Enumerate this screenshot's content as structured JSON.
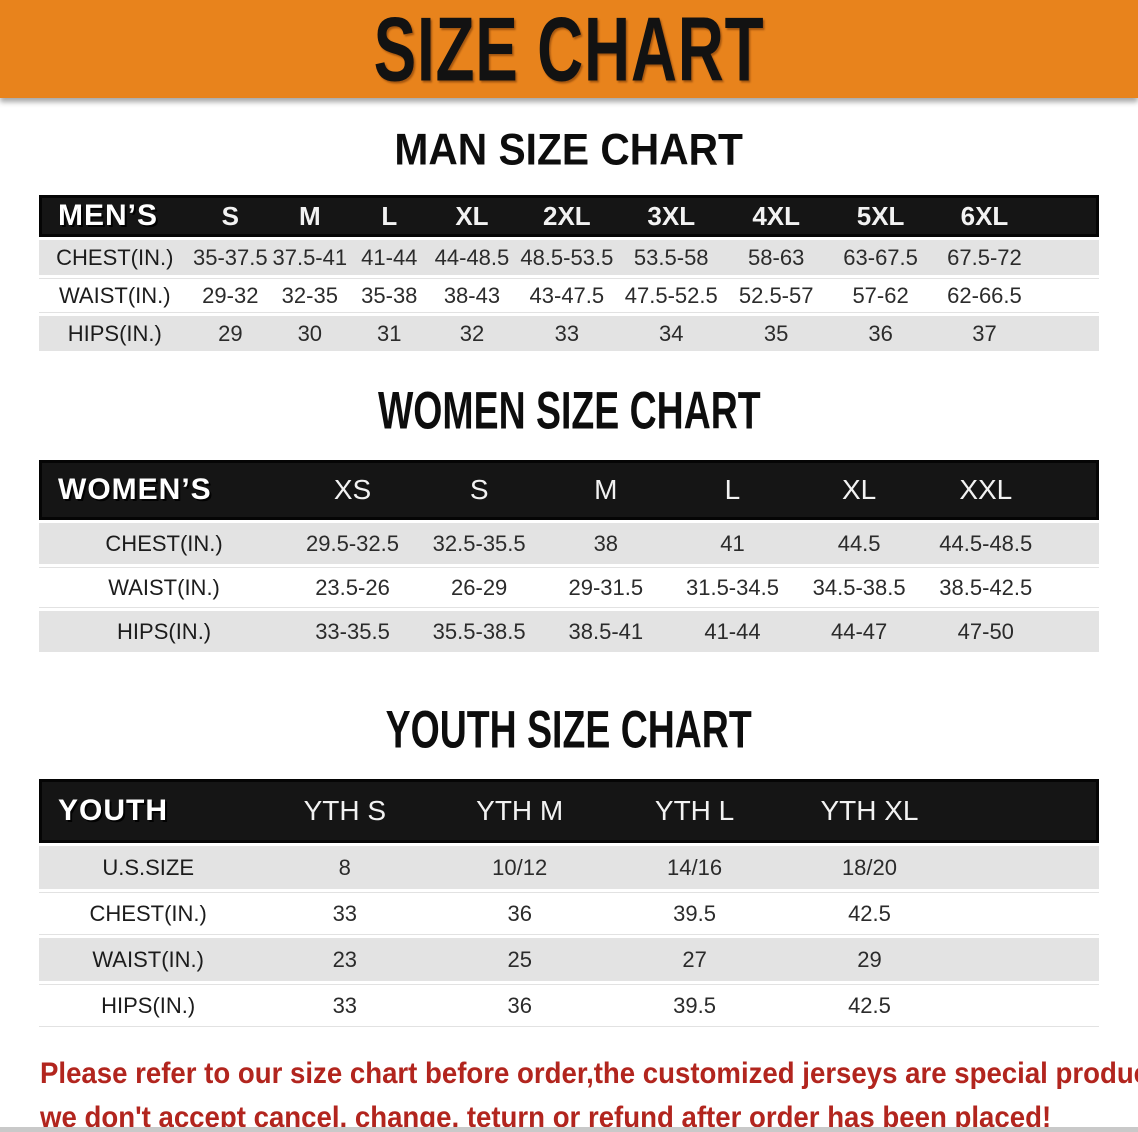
{
  "banner": {
    "title": "SIZE CHART",
    "bg_color": "#e8831c",
    "text_color": "#121212"
  },
  "sections": [
    {
      "heading": "MAN SIZE CHART",
      "label": "MEN’S",
      "columns": [
        "S",
        "M",
        "L",
        "XL",
        "2XL",
        "3XL",
        "4XL",
        "5XL",
        "6XL"
      ],
      "rows": [
        {
          "label": "CHEST(IN.)",
          "values": [
            "35-37.5",
            "37.5-41",
            "41-44",
            "44-48.5",
            "48.5-53.5",
            "53.5-58",
            "58-63",
            "63-67.5",
            "67.5-72"
          ]
        },
        {
          "label": "WAIST(IN.)",
          "values": [
            "29-32",
            "32-35",
            "35-38",
            "38-43",
            "43-47.5",
            "47.5-52.5",
            "52.5-57",
            "57-62",
            "62-66.5"
          ]
        },
        {
          "label": "HIPS(IN.)",
          "values": [
            "29",
            "30",
            "31",
            "32",
            "33",
            "34",
            "35",
            "36",
            "37"
          ]
        }
      ]
    },
    {
      "heading": "WOMEN SIZE CHART",
      "label": "WOMEN’S",
      "columns": [
        "XS",
        "S",
        "M",
        "L",
        "XL",
        "XXL"
      ],
      "rows": [
        {
          "label": "CHEST(IN.)",
          "values": [
            "29.5-32.5",
            "32.5-35.5",
            "38",
            "41",
            "44.5",
            "44.5-48.5"
          ]
        },
        {
          "label": "WAIST(IN.)",
          "values": [
            "23.5-26",
            "26-29",
            "29-31.5",
            "31.5-34.5",
            "34.5-38.5",
            "38.5-42.5"
          ]
        },
        {
          "label": "HIPS(IN.)",
          "values": [
            "33-35.5",
            "35.5-38.5",
            "38.5-41",
            "41-44",
            "44-47",
            "47-50"
          ]
        }
      ]
    },
    {
      "heading": "YOUTH SIZE CHART",
      "label": "YOUTH",
      "columns": [
        "YTH S",
        "YTH M",
        "YTH L",
        "YTH XL"
      ],
      "rows": [
        {
          "label": "U.S.SIZE",
          "values": [
            "8",
            "10/12",
            "14/16",
            "18/20"
          ]
        },
        {
          "label": "CHEST(IN.)",
          "values": [
            "33",
            "36",
            "39.5",
            "42.5"
          ]
        },
        {
          "label": "WAIST(IN.)",
          "values": [
            "23",
            "25",
            "27",
            "29"
          ]
        },
        {
          "label": "HIPS(IN.)",
          "values": [
            "33",
            "36",
            "39.5",
            "42.5"
          ]
        }
      ]
    }
  ],
  "disclaimer": {
    "line1": "Please refer to our size chart before order,the customized jerseys are special products,",
    "line2": "we don't accept cancel, change, teturn or refund after order has been placed!",
    "text_color": "#b2251e"
  },
  "colors": {
    "banner_orange": "#e8831c",
    "header_bar_black": "#151515",
    "stripe_gray": "#e3e3e3",
    "disclaimer_red": "#b2251e"
  }
}
